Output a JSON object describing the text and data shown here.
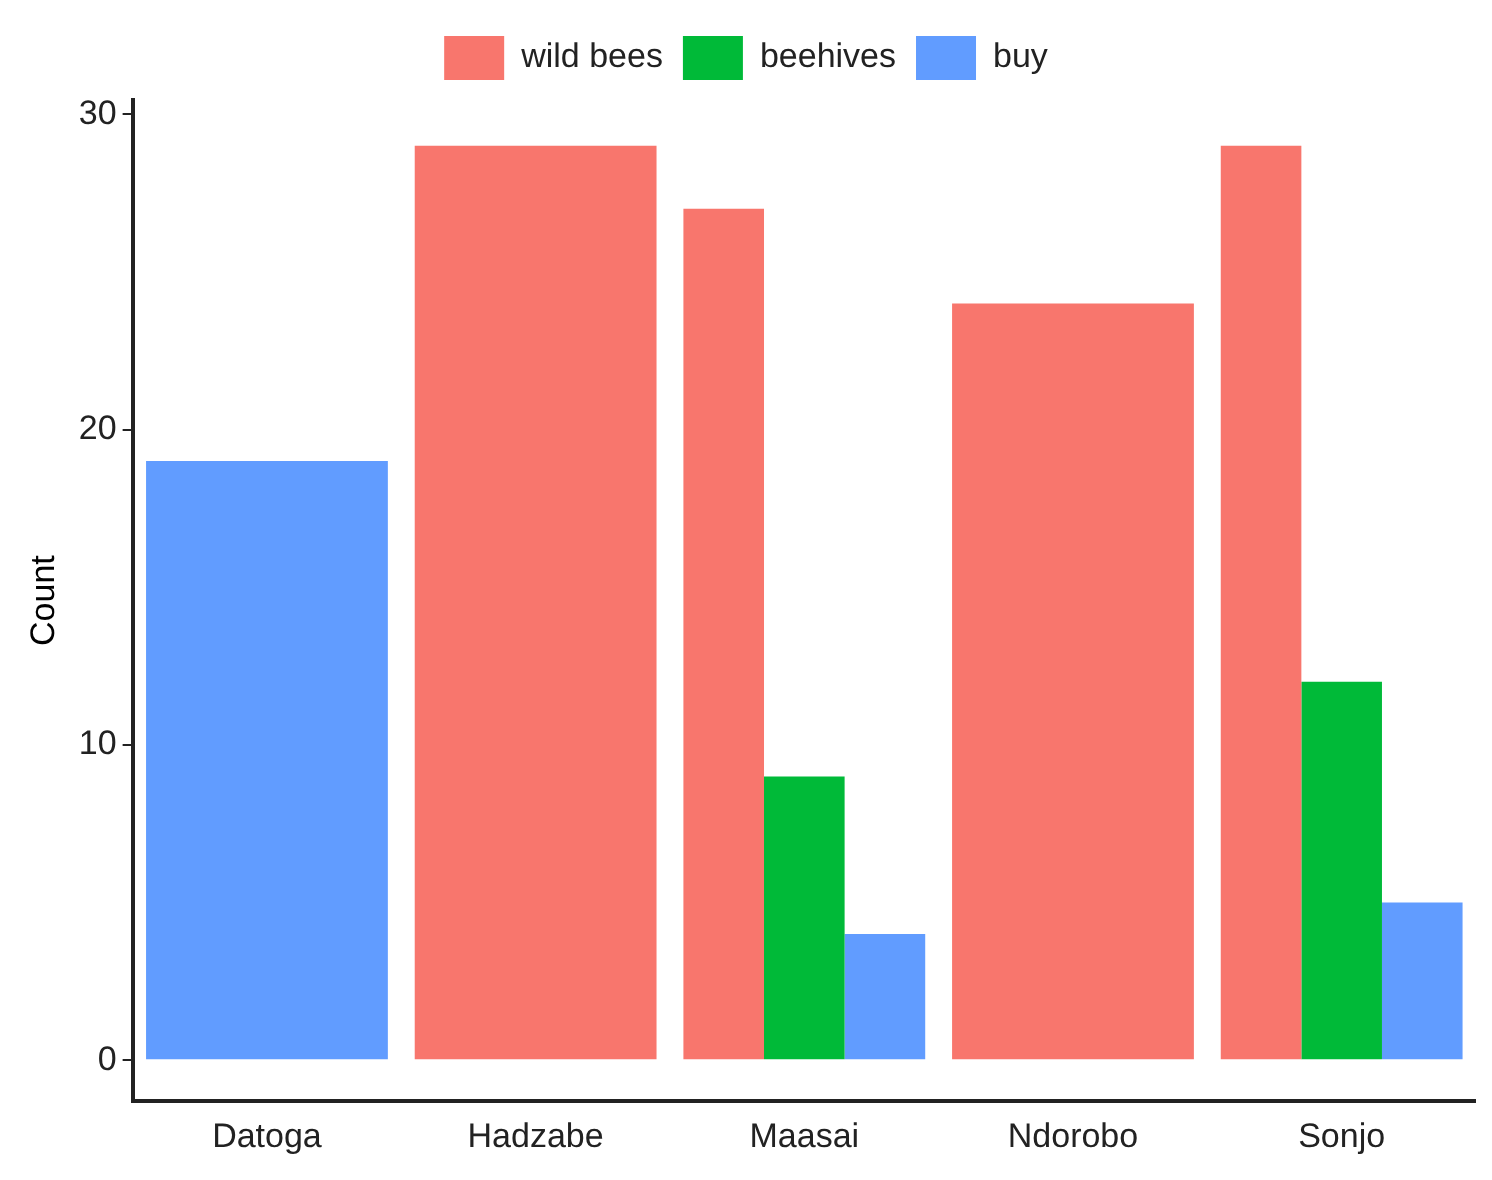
{
  "chart_data": {
    "type": "bar",
    "ylabel": "Count",
    "categories": [
      "Datoga",
      "Hadzabe",
      "Maasai",
      "Ndorobo",
      "Sonjo"
    ],
    "series": [
      {
        "name": "wild bees",
        "color": "#f8766d",
        "values": [
          null,
          29,
          27,
          24,
          29
        ]
      },
      {
        "name": "beehives",
        "color": "#00ba38",
        "values": [
          null,
          null,
          9,
          null,
          12
        ]
      },
      {
        "name": "buy",
        "color": "#619cff",
        "values": [
          19,
          null,
          4,
          null,
          5
        ]
      }
    ],
    "ylim": [
      -1.3,
      30.45
    ],
    "yticks": [
      0,
      10,
      20,
      30
    ],
    "grid": false,
    "legend": "top"
  }
}
